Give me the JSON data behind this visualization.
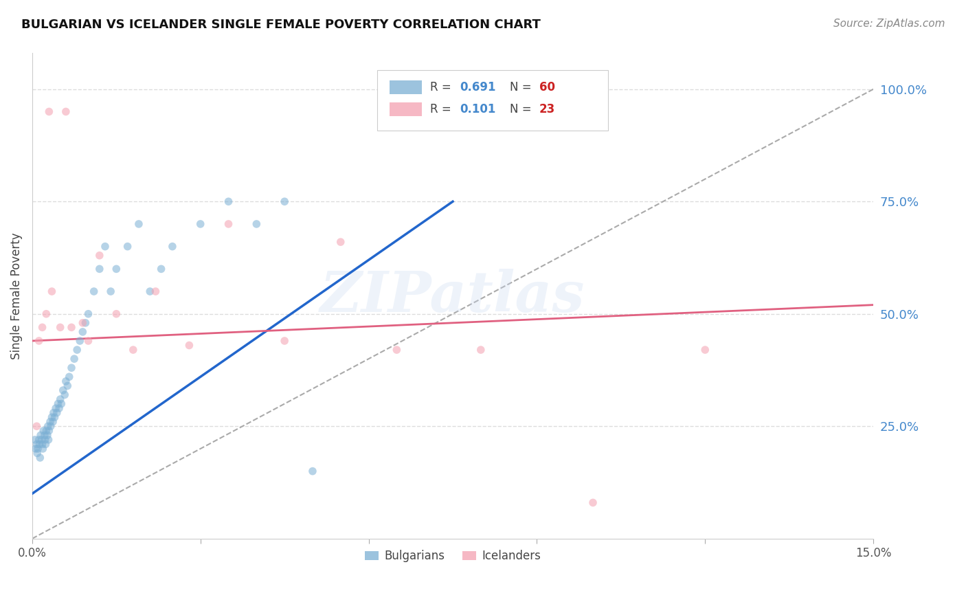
{
  "title": "BULGARIAN VS ICELANDER SINGLE FEMALE POVERTY CORRELATION CHART",
  "source": "Source: ZipAtlas.com",
  "ylabel": "Single Female Poverty",
  "ytick_labels": [
    "100.0%",
    "75.0%",
    "50.0%",
    "25.0%"
  ],
  "ytick_values": [
    1.0,
    0.75,
    0.5,
    0.25
  ],
  "xlim": [
    0.0,
    15.0
  ],
  "ylim": [
    0.0,
    1.08
  ],
  "bg_color": "#ffffff",
  "grid_color": "#dddddd",
  "bulgarian_color": "#7bafd4",
  "icelander_color": "#f4a0b0",
  "bulgarian_line_color": "#2266cc",
  "icelander_line_color": "#e06080",
  "diagonal_color": "#aaaaaa",
  "watermark": "ZIPatlas",
  "scatter_alpha": 0.55,
  "scatter_size": 70,
  "bulgarian_scatter_x": [
    0.05,
    0.08,
    0.1,
    0.12,
    0.13,
    0.15,
    0.17,
    0.18,
    0.2,
    0.22,
    0.23,
    0.25,
    0.27,
    0.28,
    0.3,
    0.32,
    0.33,
    0.35,
    0.37,
    0.38,
    0.4,
    0.42,
    0.44,
    0.46,
    0.48,
    0.5,
    0.52,
    0.55,
    0.58,
    0.6,
    0.63,
    0.66,
    0.7,
    0.75,
    0.8,
    0.85,
    0.9,
    0.95,
    1.0,
    1.1,
    1.2,
    1.3,
    1.4,
    1.5,
    1.7,
    1.9,
    2.1,
    2.3,
    2.5,
    3.0,
    3.5,
    4.0,
    4.5,
    5.0,
    0.06,
    0.09,
    0.14,
    0.19,
    0.24,
    0.29
  ],
  "bulgarian_scatter_y": [
    0.22,
    0.21,
    0.2,
    0.22,
    0.21,
    0.23,
    0.22,
    0.21,
    0.24,
    0.23,
    0.22,
    0.24,
    0.23,
    0.25,
    0.24,
    0.26,
    0.25,
    0.27,
    0.26,
    0.28,
    0.27,
    0.29,
    0.28,
    0.3,
    0.29,
    0.31,
    0.3,
    0.33,
    0.32,
    0.35,
    0.34,
    0.36,
    0.38,
    0.4,
    0.42,
    0.44,
    0.46,
    0.48,
    0.5,
    0.55,
    0.6,
    0.65,
    0.55,
    0.6,
    0.65,
    0.7,
    0.55,
    0.6,
    0.65,
    0.7,
    0.75,
    0.7,
    0.75,
    0.15,
    0.2,
    0.19,
    0.18,
    0.2,
    0.21,
    0.22
  ],
  "icelander_scatter_x": [
    0.08,
    0.12,
    0.18,
    0.25,
    0.35,
    0.5,
    0.7,
    0.9,
    1.2,
    1.5,
    1.8,
    2.2,
    2.8,
    3.5,
    4.5,
    5.5,
    6.5,
    8.0,
    10.0,
    12.0,
    0.3,
    0.6,
    1.0
  ],
  "icelander_scatter_y": [
    0.25,
    0.44,
    0.47,
    0.5,
    0.55,
    0.47,
    0.47,
    0.48,
    0.63,
    0.5,
    0.42,
    0.55,
    0.43,
    0.7,
    0.44,
    0.66,
    0.42,
    0.42,
    0.08,
    0.42,
    0.95,
    0.95,
    0.44
  ],
  "bulgarian_line_x": [
    0.0,
    7.5
  ],
  "bulgarian_line_y": [
    0.1,
    0.75
  ],
  "icelander_line_x": [
    0.0,
    15.0
  ],
  "icelander_line_y": [
    0.44,
    0.52
  ]
}
